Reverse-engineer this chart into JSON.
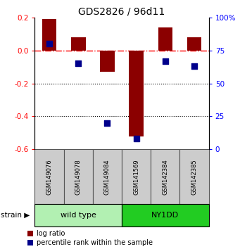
{
  "title": "GDS2826 / 96d11",
  "samples": [
    "GSM149076",
    "GSM149078",
    "GSM149084",
    "GSM141569",
    "GSM142384",
    "GSM142385"
  ],
  "log_ratios": [
    0.19,
    0.08,
    -0.13,
    -0.52,
    0.14,
    0.08
  ],
  "percentile_ranks": [
    80,
    65,
    20,
    8,
    67,
    63
  ],
  "groups": [
    {
      "label": "wild type",
      "indices": [
        0,
        1,
        2
      ],
      "color": "#b2f0b2"
    },
    {
      "label": "NY1DD",
      "indices": [
        3,
        4,
        5
      ],
      "color": "#22cc22"
    }
  ],
  "group_label": "strain",
  "ylim_left": [
    -0.6,
    0.2
  ],
  "ylim_right": [
    0,
    100
  ],
  "yticks_left": [
    -0.6,
    -0.4,
    -0.2,
    0.0,
    0.2
  ],
  "yticks_right": [
    0,
    25,
    50,
    75,
    100
  ],
  "yticklabels_right": [
    "0",
    "25",
    "50",
    "75",
    "100%"
  ],
  "bar_color": "#8B0000",
  "dot_color": "#00008B",
  "hline_color": "red",
  "hline_style": "-.",
  "grid_color": "black",
  "grid_style": ":",
  "grid_levels": [
    -0.2,
    -0.4
  ],
  "bar_width": 0.5,
  "dot_size": 35,
  "label_log_ratio": "log ratio",
  "label_percentile": "percentile rank within the sample",
  "background_color": "#ffffff",
  "sample_box_color": "#cccccc",
  "sample_box_border": "#555555"
}
